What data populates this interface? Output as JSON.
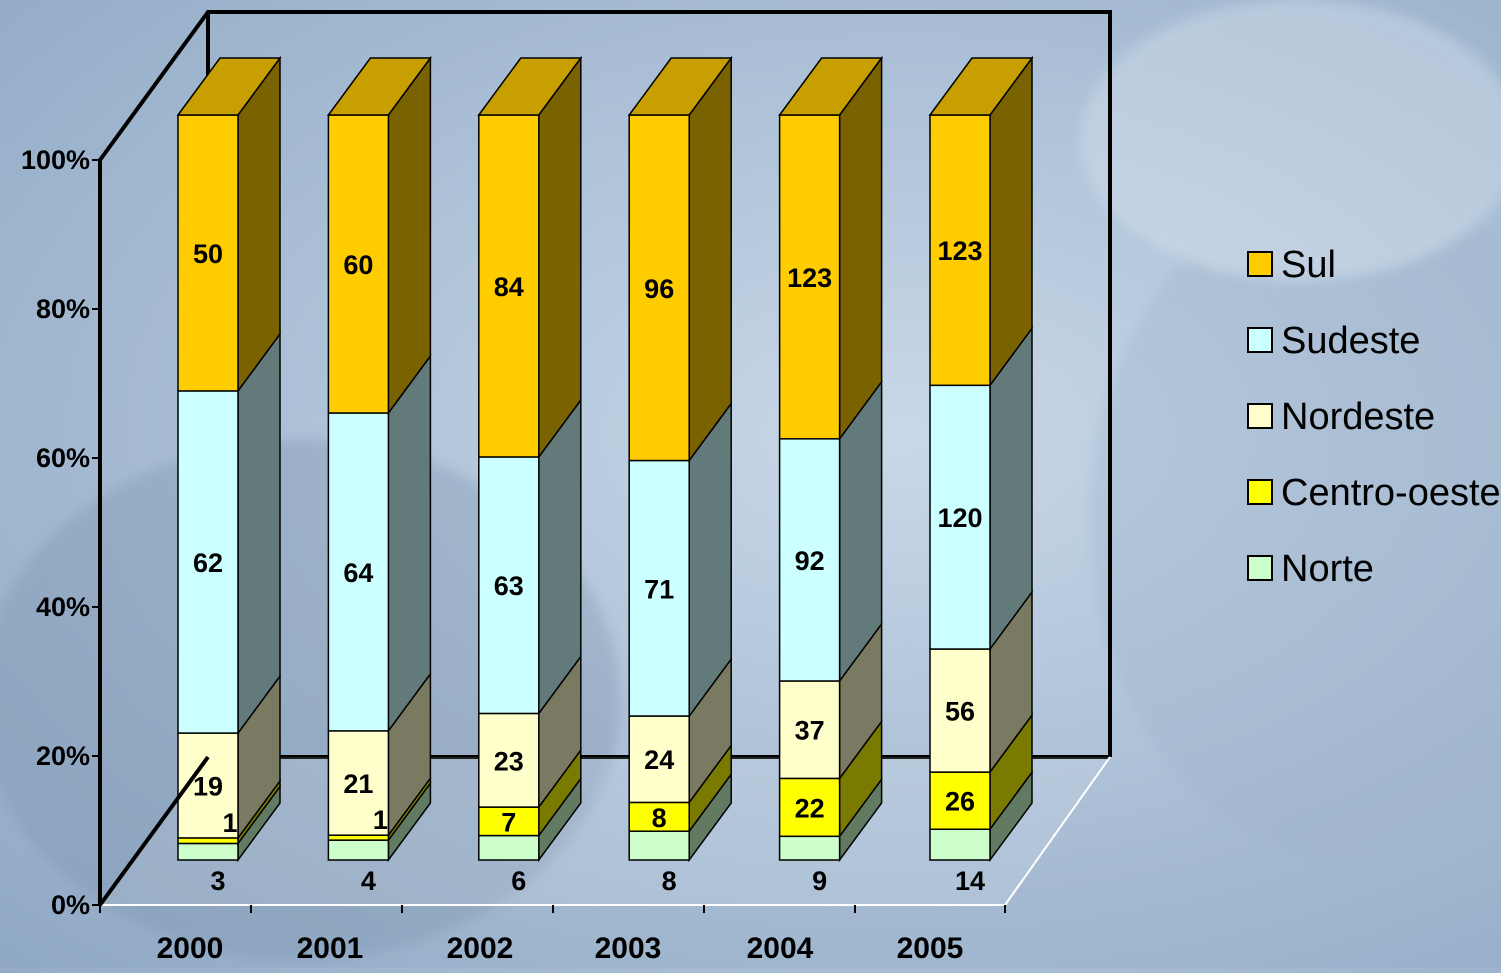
{
  "chart_data": {
    "type": "bar",
    "stacked": "percent",
    "categories": [
      "2000",
      "2001",
      "2002",
      "2003",
      "2004",
      "2005"
    ],
    "series": [
      {
        "name": "Norte",
        "values": [
          3,
          4,
          6,
          8,
          9,
          14
        ],
        "color": "#ccffcc"
      },
      {
        "name": "Centro-oeste",
        "values": [
          1,
          1,
          7,
          8,
          22,
          26
        ],
        "color": "#ffff00"
      },
      {
        "name": "Nordeste",
        "values": [
          19,
          21,
          23,
          24,
          37,
          56
        ],
        "color": "#ffffcc"
      },
      {
        "name": "Sudeste",
        "values": [
          62,
          64,
          63,
          71,
          92,
          120
        ],
        "color": "#ccffff"
      },
      {
        "name": "Sul",
        "values": [
          50,
          60,
          84,
          96,
          123,
          123
        ],
        "color": "#ffcc00"
      }
    ],
    "ylim": [
      0,
      100
    ],
    "y_ticks": [
      "0%",
      "20%",
      "40%",
      "60%",
      "80%",
      "100%"
    ],
    "legend_position": "right",
    "title": "",
    "xlabel": "",
    "ylabel": ""
  }
}
